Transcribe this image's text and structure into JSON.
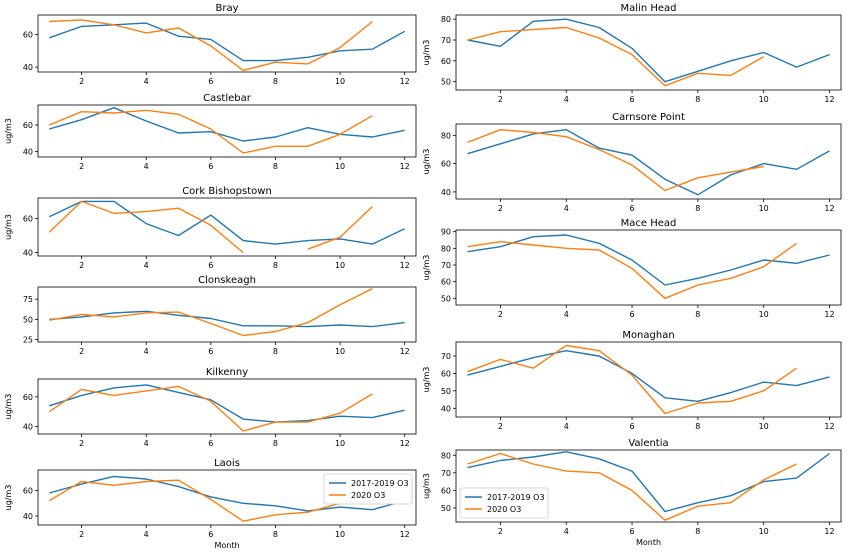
{
  "colors": {
    "series_2017_2019": "#1f77b4",
    "series_2020": "#ff7f0e",
    "axes": "#000000",
    "background": "#ffffff"
  },
  "chart_data": [
    {
      "type": "line",
      "title": "Bray",
      "xlabel": "",
      "ylabel": "",
      "x": [
        1,
        2,
        3,
        4,
        5,
        6,
        7,
        8,
        9,
        10,
        11,
        12
      ],
      "xticks": [
        2,
        4,
        6,
        8,
        10,
        12
      ],
      "xlim": [
        0.65,
        12.35
      ],
      "ylim": [
        37,
        72
      ],
      "yticks": [
        40,
        60
      ],
      "series": [
        {
          "name": "2017-2019 O3",
          "values": [
            58,
            65,
            66,
            67,
            59,
            57,
            44,
            44,
            46,
            50,
            51,
            62
          ]
        },
        {
          "name": "2020 O3",
          "values": [
            68,
            69,
            66,
            61,
            64,
            53,
            38,
            43,
            42,
            52,
            68,
            null
          ]
        }
      ]
    },
    {
      "type": "line",
      "title": "Malin Head",
      "xlabel": "",
      "ylabel": "ug/m3",
      "x": [
        1,
        2,
        3,
        4,
        5,
        6,
        7,
        8,
        9,
        10,
        11,
        12
      ],
      "xticks": [
        2,
        4,
        6,
        8,
        10,
        12
      ],
      "xlim": [
        0.65,
        12.35
      ],
      "ylim": [
        46,
        82
      ],
      "yticks": [
        50,
        60,
        70,
        80
      ],
      "series": [
        {
          "name": "2017-2019 O3",
          "values": [
            70,
            67,
            79,
            80,
            76,
            66,
            50,
            55,
            60,
            64,
            57,
            63
          ]
        },
        {
          "name": "2020 O3",
          "values": [
            70,
            74,
            75,
            76,
            71,
            63,
            48,
            54,
            53,
            62,
            null,
            null
          ]
        }
      ]
    },
    {
      "type": "line",
      "title": "Castlebar",
      "xlabel": "",
      "ylabel": "ug/m3",
      "x": [
        1,
        2,
        3,
        4,
        5,
        6,
        7,
        8,
        9,
        10,
        11,
        12
      ],
      "xticks": [
        2,
        4,
        6,
        8,
        10,
        12
      ],
      "xlim": [
        0.65,
        12.35
      ],
      "ylim": [
        36,
        75
      ],
      "yticks": [
        40,
        60
      ],
      "series": [
        {
          "name": "2017-2019 O3",
          "values": [
            57,
            64,
            73,
            63,
            54,
            55,
            48,
            51,
            58,
            53,
            51,
            56
          ]
        },
        {
          "name": "2020 O3",
          "values": [
            60,
            70,
            69,
            71,
            68,
            57,
            39,
            44,
            44,
            53,
            67,
            null
          ]
        }
      ]
    },
    {
      "type": "line",
      "title": "Carnsore Point",
      "xlabel": "",
      "ylabel": "ug/m3",
      "x": [
        1,
        2,
        3,
        4,
        5,
        6,
        7,
        8,
        9,
        10,
        11,
        12
      ],
      "xticks": [
        2,
        4,
        6,
        8,
        10,
        12
      ],
      "xlim": [
        0.65,
        12.35
      ],
      "ylim": [
        35,
        88
      ],
      "yticks": [
        40,
        60,
        80
      ],
      "series": [
        {
          "name": "2017-2019 O3",
          "values": [
            67,
            74,
            81,
            84,
            71,
            66,
            49,
            38,
            52,
            60,
            56,
            69
          ]
        },
        {
          "name": "2020 O3",
          "values": [
            75,
            84,
            82,
            79,
            70,
            59,
            41,
            50,
            54,
            58,
            null,
            null
          ]
        }
      ]
    },
    {
      "type": "line",
      "title": "Cork Bishopstown",
      "xlabel": "",
      "ylabel": "ug/m3",
      "x": [
        1,
        2,
        3,
        4,
        5,
        6,
        7,
        8,
        9,
        10,
        11,
        12
      ],
      "xticks": [
        2,
        4,
        6,
        8,
        10,
        12
      ],
      "xlim": [
        0.65,
        12.35
      ],
      "ylim": [
        38,
        72
      ],
      "yticks": [
        40,
        60
      ],
      "series": [
        {
          "name": "2017-2019 O3",
          "values": [
            61,
            70,
            70,
            57,
            50,
            62,
            47,
            45,
            47,
            48,
            45,
            54
          ]
        },
        {
          "name": "2020 O3",
          "values": [
            52,
            70,
            63,
            64,
            66,
            56,
            40,
            null,
            42,
            49,
            67,
            null
          ]
        }
      ]
    },
    {
      "type": "line",
      "title": "Mace Head",
      "xlabel": "",
      "ylabel": "ug/m3",
      "x": [
        1,
        2,
        3,
        4,
        5,
        6,
        7,
        8,
        9,
        10,
        11,
        12
      ],
      "xticks": [
        2,
        4,
        6,
        8,
        10,
        12
      ],
      "xlim": [
        0.65,
        12.35
      ],
      "ylim": [
        46,
        91
      ],
      "yticks": [
        50,
        60,
        70,
        80,
        90
      ],
      "series": [
        {
          "name": "2017-2019 O3",
          "values": [
            78,
            81,
            87,
            88,
            83,
            73,
            58,
            62,
            67,
            73,
            71,
            76
          ]
        },
        {
          "name": "2020 O3",
          "values": [
            81,
            84,
            82,
            80,
            79,
            68,
            50,
            58,
            62,
            69,
            83,
            null
          ]
        }
      ]
    },
    {
      "type": "line",
      "title": "Clonskeagh",
      "xlabel": "",
      "ylabel": "",
      "x": [
        1,
        2,
        3,
        4,
        5,
        6,
        7,
        8,
        9,
        10,
        11,
        12
      ],
      "xticks": [
        2,
        4,
        6,
        8,
        10,
        12
      ],
      "xlim": [
        0.65,
        12.35
      ],
      "ylim": [
        22,
        90
      ],
      "yticks": [
        25,
        50,
        75
      ],
      "series": [
        {
          "name": "2017-2019 O3",
          "values": [
            50,
            53,
            58,
            60,
            55,
            51,
            42,
            42,
            41,
            43,
            41,
            46
          ]
        },
        {
          "name": "2020 O3",
          "values": [
            49,
            56,
            53,
            58,
            59,
            45,
            30,
            35,
            46,
            68,
            88,
            null
          ]
        }
      ]
    },
    {
      "type": "line",
      "title": "Monaghan",
      "xlabel": "",
      "ylabel": "ug/m3",
      "x": [
        1,
        2,
        3,
        4,
        5,
        6,
        7,
        8,
        9,
        10,
        11,
        12
      ],
      "xticks": [
        2,
        4,
        6,
        8,
        10,
        12
      ],
      "xlim": [
        0.65,
        12.35
      ],
      "ylim": [
        35,
        78
      ],
      "yticks": [
        40,
        50,
        60,
        70
      ],
      "series": [
        {
          "name": "2017-2019 O3",
          "values": [
            59,
            64,
            69,
            73,
            70,
            60,
            46,
            44,
            49,
            55,
            53,
            58
          ]
        },
        {
          "name": "2020 O3",
          "values": [
            61,
            68,
            63,
            76,
            73,
            59,
            37,
            43,
            44,
            50,
            63,
            null
          ]
        }
      ]
    },
    {
      "type": "line",
      "title": "Kilkenny",
      "xlabel": "",
      "ylabel": "ug/m3",
      "x": [
        1,
        2,
        3,
        4,
        5,
        6,
        7,
        8,
        9,
        10,
        11,
        12
      ],
      "xticks": [
        2,
        4,
        6,
        8,
        10,
        12
      ],
      "xlim": [
        0.65,
        12.35
      ],
      "ylim": [
        35,
        72
      ],
      "yticks": [
        40,
        60
      ],
      "series": [
        {
          "name": "2017-2019 O3",
          "values": [
            54,
            61,
            66,
            68,
            63,
            58,
            45,
            43,
            44,
            47,
            46,
            51
          ]
        },
        {
          "name": "2020 O3",
          "values": [
            50,
            65,
            61,
            64,
            67,
            57,
            37,
            43,
            43,
            49,
            62,
            null
          ]
        }
      ]
    },
    {
      "type": "line",
      "title": "Valentia",
      "xlabel": "Month",
      "ylabel": "ug/m3",
      "x": [
        1,
        2,
        3,
        4,
        5,
        6,
        7,
        8,
        9,
        10,
        11,
        12
      ],
      "xticks": [
        2,
        4,
        6,
        8,
        10,
        12
      ],
      "xlim": [
        0.65,
        12.35
      ],
      "ylim": [
        42,
        83
      ],
      "yticks": [
        50,
        60,
        70,
        80
      ],
      "legend": "lower left",
      "series": [
        {
          "name": "2017-2019 O3",
          "values": [
            73,
            77,
            79,
            82,
            78,
            71,
            48,
            53,
            57,
            65,
            67,
            81
          ]
        },
        {
          "name": "2020 O3",
          "values": [
            75,
            81,
            75,
            71,
            70,
            60,
            43,
            51,
            53,
            66,
            75,
            null
          ]
        }
      ]
    },
    {
      "type": "line",
      "title": "Laois",
      "xlabel": "Month",
      "ylabel": "ug/m3",
      "x": [
        1,
        2,
        3,
        4,
        5,
        6,
        7,
        8,
        9,
        10,
        11,
        12
      ],
      "xticks": [
        2,
        4,
        6,
        8,
        10,
        12
      ],
      "xlim": [
        0.65,
        12.35
      ],
      "ylim": [
        33,
        76
      ],
      "yticks": [
        40,
        60
      ],
      "legend": "upper right",
      "series": [
        {
          "name": "2017-2019 O3",
          "values": [
            58,
            65,
            71,
            69,
            63,
            55,
            50,
            48,
            44,
            47,
            45,
            52
          ]
        },
        {
          "name": "2020 O3",
          "values": [
            52,
            67,
            64,
            67,
            68,
            53,
            36,
            41,
            43,
            50,
            null,
            null
          ]
        }
      ]
    }
  ]
}
